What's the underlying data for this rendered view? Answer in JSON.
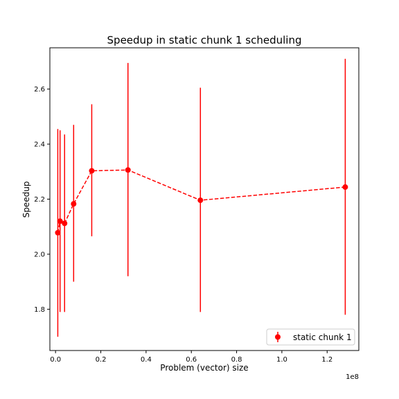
{
  "chart_data": {
    "type": "line",
    "title": "Speedup in static chunk 1 scheduling",
    "xlabel": "Problem (vector) size",
    "ylabel": "Speedup",
    "x_offset_label": "1e8",
    "x_scale": 100000000,
    "xlim": [
      -2500000,
      134000000
    ],
    "ylim": [
      1.65,
      2.75
    ],
    "x_ticks": [
      0,
      20000000,
      40000000,
      60000000,
      80000000,
      100000000,
      120000000
    ],
    "x_tick_labels": [
      "0.0",
      "0.2",
      "0.4",
      "0.6",
      "0.8",
      "1.0",
      "1.2"
    ],
    "y_ticks": [
      1.8,
      2.0,
      2.2,
      2.4,
      2.6
    ],
    "y_tick_labels": [
      "1.8",
      "2.0",
      "2.2",
      "2.4",
      "2.6"
    ],
    "grid": false,
    "legend_position": "lower right",
    "series": [
      {
        "name": "static chunk 1",
        "color": "#ff0000",
        "linestyle": "dashed",
        "marker": "circle",
        "x": [
          1000000,
          2000000,
          4000000,
          8000000,
          16000000,
          32000000,
          64000000,
          128000000
        ],
        "y": [
          2.078,
          2.12,
          2.112,
          2.183,
          2.303,
          2.306,
          2.196,
          2.244
        ],
        "err_low": [
          1.7,
          1.79,
          1.79,
          1.9,
          2.065,
          1.92,
          1.79,
          1.78
        ],
        "err_high": [
          2.455,
          2.45,
          2.435,
          2.47,
          2.545,
          2.695,
          2.605,
          2.71
        ]
      }
    ]
  }
}
